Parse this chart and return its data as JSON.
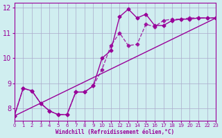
{
  "xlabel": "Windchill (Refroidissement éolien,°C)",
  "background_color": "#d0eef0",
  "grid_color": "#aaaacc",
  "line_color": "#990099",
  "xlim": [
    0,
    23
  ],
  "ylim": [
    7.5,
    12.2
  ],
  "yticks": [
    8,
    9,
    10,
    11,
    12
  ],
  "xticks": [
    0,
    1,
    2,
    3,
    4,
    5,
    6,
    7,
    8,
    9,
    10,
    11,
    12,
    13,
    14,
    15,
    16,
    17,
    18,
    19,
    20,
    21,
    22,
    23
  ],
  "curve1_x": [
    0,
    1,
    2,
    3,
    4,
    5,
    6,
    7,
    8,
    9,
    10,
    11,
    12,
    13,
    14,
    15,
    16,
    17,
    18,
    19,
    20,
    21,
    22,
    23
  ],
  "curve1_y": [
    7.7,
    8.8,
    8.7,
    8.2,
    7.9,
    7.75,
    7.75,
    8.65,
    8.65,
    8.9,
    10.0,
    10.3,
    11.65,
    11.95,
    11.6,
    11.75,
    11.3,
    11.3,
    11.5,
    11.55,
    11.55,
    11.6,
    11.6,
    11.6
  ],
  "curve2_x": [
    0,
    1,
    2,
    3,
    4,
    5,
    6,
    7,
    8,
    9,
    10,
    11,
    12,
    13,
    14,
    15,
    16,
    17,
    18,
    19,
    20,
    21,
    22,
    23
  ],
  "curve2_y": [
    7.7,
    8.8,
    8.7,
    8.2,
    7.9,
    7.75,
    7.75,
    8.65,
    8.65,
    8.9,
    9.55,
    10.5,
    11.0,
    10.5,
    10.55,
    11.35,
    11.25,
    11.5,
    11.55,
    11.55,
    11.6,
    11.6,
    11.6,
    11.6
  ]
}
